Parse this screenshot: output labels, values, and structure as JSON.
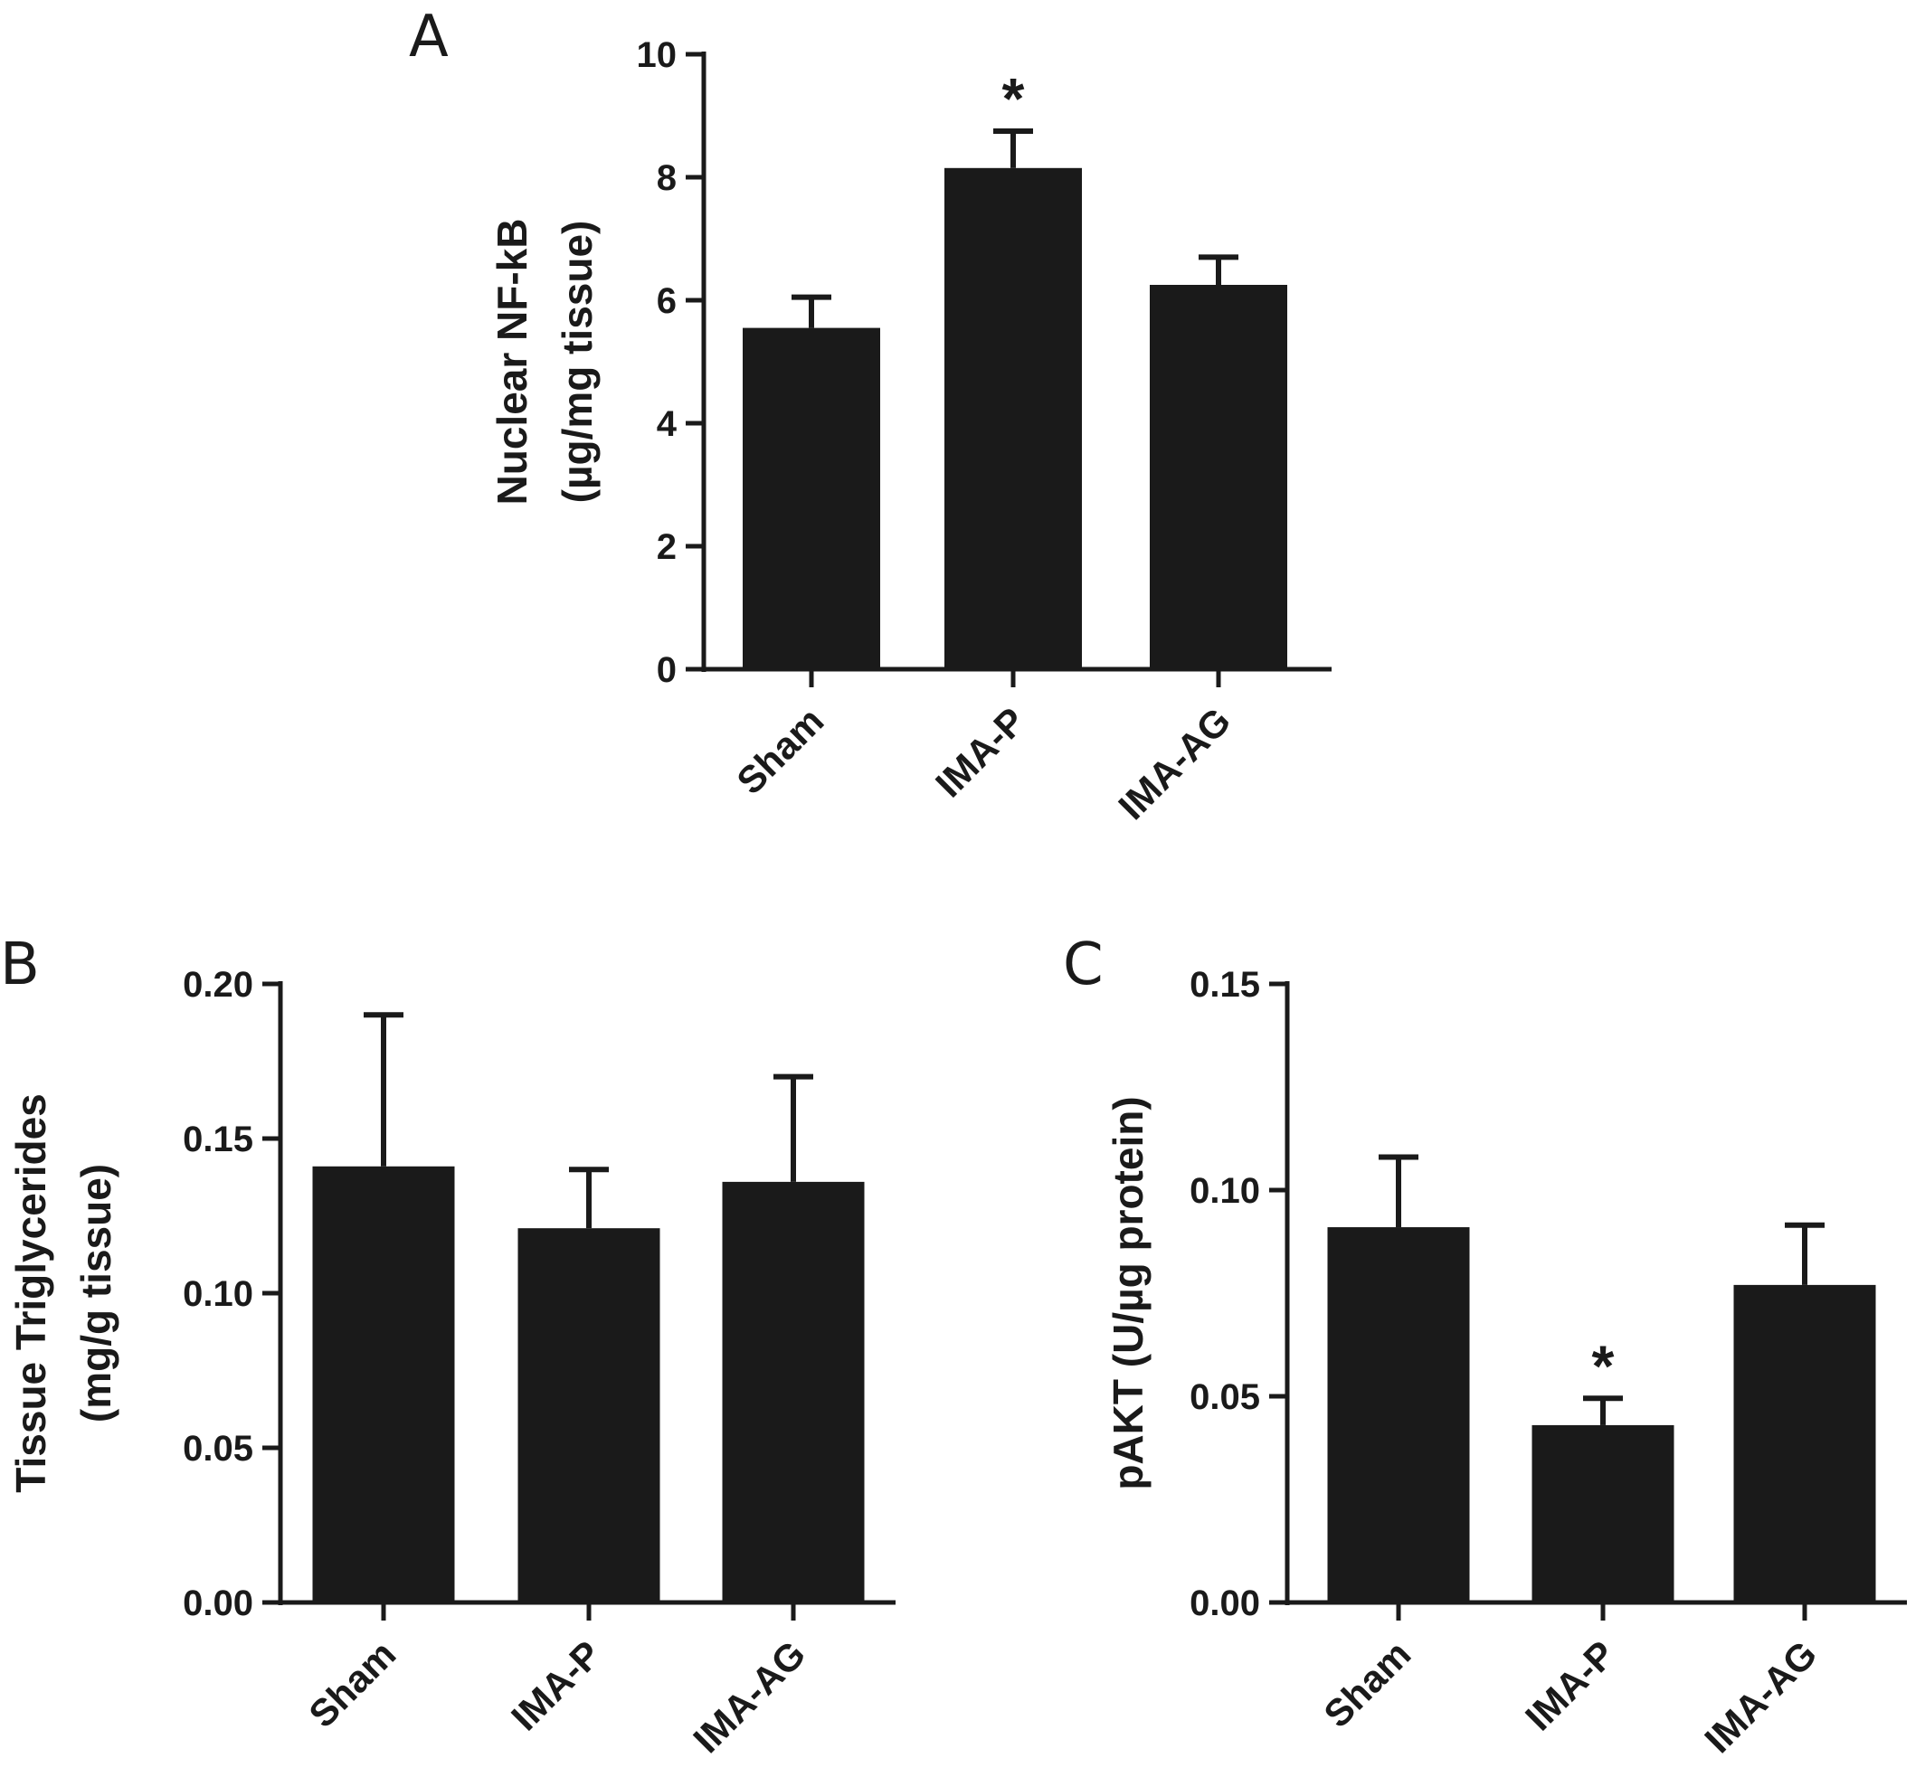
{
  "chart_data": [
    {
      "panel": "A",
      "type": "bar",
      "categories": [
        "Sham",
        "IMA-P",
        "IMA-AG"
      ],
      "values": [
        5.55,
        8.15,
        6.25
      ],
      "errors": [
        0.5,
        0.6,
        0.45
      ],
      "annotations": [
        "",
        "*",
        ""
      ],
      "ylabel_lines": [
        "Nuclear NF-kB",
        "(µg/mg tissue)"
      ],
      "ylim": [
        0,
        10
      ],
      "yticks": [
        0,
        2,
        4,
        6,
        8,
        10
      ],
      "ytick_labels": [
        "0",
        "2",
        "4",
        "6",
        "8",
        "10"
      ],
      "bar_color": "#1a1a1a",
      "grid": false
    },
    {
      "panel": "B",
      "type": "bar",
      "categories": [
        "Sham",
        "IMA-P",
        "IMA-AG"
      ],
      "values": [
        0.141,
        0.121,
        0.136
      ],
      "errors": [
        0.049,
        0.019,
        0.034
      ],
      "annotations": [
        "",
        "",
        ""
      ],
      "ylabel_lines": [
        "Tissue Triglycerides",
        "(mg/g tissue)"
      ],
      "ylim": [
        0,
        0.2
      ],
      "yticks": [
        0,
        0.05,
        0.1,
        0.15,
        0.2
      ],
      "ytick_labels": [
        "0.00",
        "0.05",
        "0.10",
        "0.15",
        "0.20"
      ],
      "bar_color": "#1a1a1a",
      "grid": false
    },
    {
      "panel": "C",
      "type": "bar",
      "categories": [
        "Sham",
        "IMA-P",
        "IMA-AG"
      ],
      "values": [
        0.091,
        0.043,
        0.077
      ],
      "errors": [
        0.017,
        0.0065,
        0.0145
      ],
      "annotations": [
        "",
        "*",
        ""
      ],
      "ylabel_lines": [
        "pAKT (U/µg protein)"
      ],
      "ylim": [
        0,
        0.15
      ],
      "yticks": [
        0,
        0.05,
        0.1,
        0.15
      ],
      "ytick_labels": [
        "0.00",
        "0.05",
        "0.10",
        "0.15"
      ],
      "bar_color": "#1a1a1a",
      "grid": false
    }
  ]
}
